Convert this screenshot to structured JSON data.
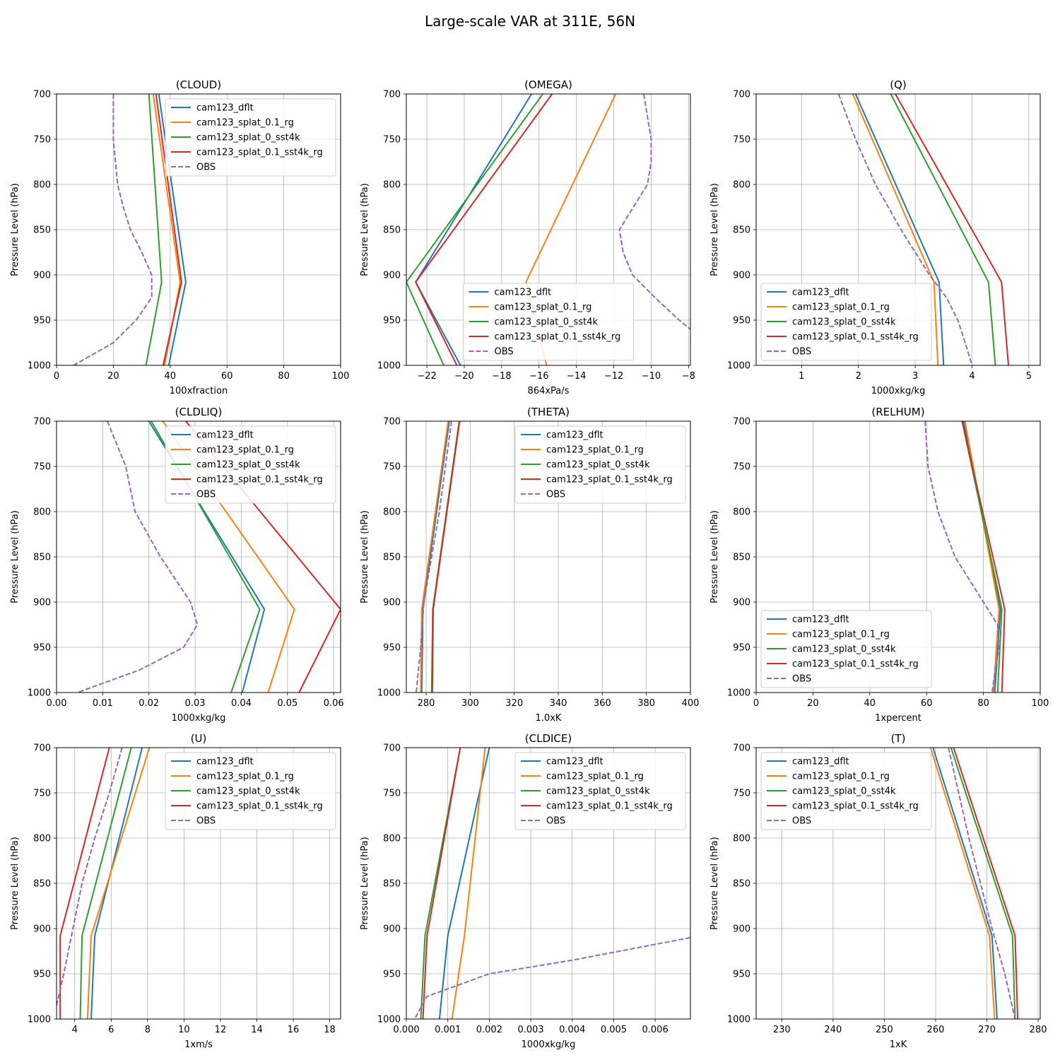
{
  "suptitle": "Large-scale VAR at 311E, 56N",
  "colors": {
    "cam123_dflt": "#1f77b4",
    "cam123_splat_0.1_rg": "#ff7f0e",
    "cam123_splat_0_sst4k": "#2ca02c",
    "cam123_splat_0.1_sst4k_rg": "#d62728",
    "OBS": "#9467bd"
  },
  "chart_data": [
    {
      "type": "line",
      "title": "(CLOUD)",
      "xlabel": "100xfraction",
      "ylabel": "Pressure Level (hPa)",
      "xlim": [
        0,
        100
      ],
      "ylim": [
        1000,
        700
      ],
      "xticks": [
        0,
        20,
        40,
        60,
        80,
        100
      ],
      "xtick_labels": [
        "0",
        "20",
        "40",
        "60",
        "80",
        "100"
      ],
      "yticks": [
        700,
        750,
        800,
        850,
        900,
        950,
        1000
      ],
      "ytick_labels": [
        "700",
        "750",
        "800",
        "850",
        "900",
        "950",
        "1000"
      ],
      "legend": "upper right",
      "series": [
        {
          "name": "cam123_dflt",
          "levels": [
            700,
            908,
            1000
          ],
          "values": [
            36,
            45.5,
            39.5
          ]
        },
        {
          "name": "cam123_splat_0.1_rg",
          "levels": [
            700,
            908,
            1000
          ],
          "values": [
            34,
            43.5,
            38
          ]
        },
        {
          "name": "cam123_splat_0_sst4k",
          "levels": [
            700,
            908,
            1000
          ],
          "values": [
            32.5,
            37,
            31.5
          ]
        },
        {
          "name": "cam123_splat_0.1_sst4k_rg",
          "levels": [
            700,
            908,
            1000
          ],
          "values": [
            35,
            44,
            37.5
          ]
        },
        {
          "name": "OBS",
          "dashed": true,
          "levels": [
            700,
            750,
            800,
            825,
            850,
            875,
            900,
            925,
            950,
            975,
            1000
          ],
          "values": [
            20,
            20,
            21.5,
            23.5,
            26,
            30,
            33.5,
            33.5,
            28,
            20,
            6
          ]
        }
      ]
    },
    {
      "type": "line",
      "title": "(OMEGA)",
      "xlabel": "864xPa/s",
      "ylabel": "Pressure Level (hPa)",
      "xlim": [
        -23.1,
        -7.9
      ],
      "ylim": [
        1000,
        700
      ],
      "xticks": [
        -22,
        -20,
        -18,
        -16,
        -14,
        -12,
        -10,
        -8
      ],
      "xtick_labels": [
        "−22",
        "−20",
        "−18",
        "−16",
        "−14",
        "−12",
        "−10",
        "−8"
      ],
      "yticks": [
        700,
        750,
        800,
        850,
        900,
        950,
        1000
      ],
      "ytick_labels": [
        "700",
        "750",
        "800",
        "850",
        "900",
        "950",
        "1000"
      ],
      "legend": "lower center",
      "series": [
        {
          "name": "cam123_dflt",
          "levels": [
            700,
            908,
            1000
          ],
          "values": [
            -16.4,
            -22.6,
            -20.2
          ]
        },
        {
          "name": "cam123_splat_0.1_rg",
          "levels": [
            700,
            908,
            1000
          ],
          "values": [
            -11.9,
            -16.7,
            -15.6
          ]
        },
        {
          "name": "cam123_splat_0_sst4k",
          "levels": [
            700,
            908,
            1000
          ],
          "values": [
            -15.8,
            -23.1,
            -21.1
          ]
        },
        {
          "name": "cam123_splat_0.1_sst4k_rg",
          "levels": [
            700,
            908,
            1000
          ],
          "values": [
            -15.3,
            -22.6,
            -20.4
          ]
        },
        {
          "name": "OBS",
          "dashed": true,
          "levels": [
            700,
            750,
            775,
            800,
            850,
            875,
            900,
            925,
            950,
            960
          ],
          "values": [
            -10.4,
            -10,
            -10,
            -10.2,
            -11.7,
            -11.5,
            -11,
            -9.8,
            -8.5,
            -7.9
          ]
        }
      ]
    },
    {
      "type": "line",
      "title": "(Q)",
      "xlabel": "1000xkg/kg",
      "ylabel": "Pressure Level (hPa)",
      "xlim": [
        0.2,
        5.2
      ],
      "ylim": [
        1000,
        700
      ],
      "xticks": [
        1,
        2,
        3,
        4,
        5
      ],
      "xtick_labels": [
        "1",
        "2",
        "3",
        "4",
        "5"
      ],
      "yticks": [
        700,
        750,
        800,
        850,
        900,
        950,
        1000
      ],
      "ytick_labels": [
        "700",
        "750",
        "800",
        "850",
        "900",
        "950",
        "1000"
      ],
      "legend": "lower left",
      "series": [
        {
          "name": "cam123_dflt",
          "levels": [
            700,
            908,
            1000
          ],
          "values": [
            1.95,
            3.42,
            3.5
          ]
        },
        {
          "name": "cam123_splat_0.1_rg",
          "levels": [
            700,
            908,
            1000
          ],
          "values": [
            1.9,
            3.33,
            3.4
          ]
        },
        {
          "name": "cam123_splat_0_sst4k",
          "levels": [
            700,
            908,
            1000
          ],
          "values": [
            2.57,
            4.29,
            4.41
          ]
        },
        {
          "name": "cam123_splat_0.1_sst4k_rg",
          "levels": [
            700,
            908,
            1000
          ],
          "values": [
            2.65,
            4.52,
            4.64
          ]
        },
        {
          "name": "OBS",
          "dashed": true,
          "levels": [
            700,
            750,
            800,
            850,
            900,
            925,
            950,
            975,
            1000
          ],
          "values": [
            1.65,
            1.95,
            2.3,
            2.75,
            3.25,
            3.55,
            3.75,
            3.88,
            4
          ]
        }
      ]
    },
    {
      "type": "line",
      "title": "(CLDLIQ)",
      "xlabel": "1000xkg/kg",
      "ylabel": "Pressure Level (hPa)",
      "xlim": [
        0,
        0.0615
      ],
      "ylim": [
        1000,
        700
      ],
      "xticks": [
        0,
        0.01,
        0.02,
        0.03,
        0.04,
        0.05,
        0.06
      ],
      "xtick_labels": [
        "0.00",
        "0.01",
        "0.02",
        "0.03",
        "0.04",
        "0.05",
        "0.06"
      ],
      "yticks": [
        700,
        750,
        800,
        850,
        900,
        950,
        1000
      ],
      "ytick_labels": [
        "700",
        "750",
        "800",
        "850",
        "900",
        "950",
        "1000"
      ],
      "legend": "upper right",
      "series": [
        {
          "name": "cam123_dflt",
          "levels": [
            700,
            908,
            1000
          ],
          "values": [
            0.02,
            0.045,
            0.0402
          ]
        },
        {
          "name": "cam123_splat_0.1_rg",
          "levels": [
            700,
            908,
            1000
          ],
          "values": [
            0.023,
            0.0515,
            0.0458
          ]
        },
        {
          "name": "cam123_splat_0_sst4k",
          "levels": [
            700,
            908,
            1000
          ],
          "values": [
            0.0205,
            0.044,
            0.0378
          ]
        },
        {
          "name": "cam123_splat_0.1_sst4k_rg",
          "levels": [
            700,
            908,
            1000
          ],
          "values": [
            0.028,
            0.0615,
            0.0525
          ]
        },
        {
          "name": "OBS",
          "dashed": true,
          "levels": [
            700,
            750,
            800,
            850,
            900,
            925,
            950,
            975,
            1000
          ],
          "values": [
            0.011,
            0.015,
            0.017,
            0.0225,
            0.029,
            0.0305,
            0.0275,
            0.018,
            0.0045
          ]
        }
      ]
    },
    {
      "type": "line",
      "title": "(THETA)",
      "xlabel": "1.0xK",
      "ylabel": "Pressure Level (hPa)",
      "xlim": [
        271,
        400
      ],
      "ylim": [
        1000,
        700
      ],
      "xticks": [
        280,
        300,
        320,
        340,
        360,
        380,
        400
      ],
      "xtick_labels": [
        "280",
        "300",
        "320",
        "340",
        "360",
        "380",
        "400"
      ],
      "yticks": [
        700,
        750,
        800,
        850,
        900,
        950,
        1000
      ],
      "ytick_labels": [
        "700",
        "750",
        "800",
        "850",
        "900",
        "950",
        "1000"
      ],
      "legend": "upper right",
      "series": [
        {
          "name": "cam123_dflt",
          "levels": [
            700,
            908,
            1000
          ],
          "values": [
            290.5,
            278.5,
            278
          ]
        },
        {
          "name": "cam123_splat_0.1_rg",
          "levels": [
            700,
            908,
            1000
          ],
          "values": [
            290,
            278,
            277.5
          ]
        },
        {
          "name": "cam123_splat_0_sst4k",
          "levels": [
            700,
            908,
            1000
          ],
          "values": [
            295,
            283,
            282.5
          ]
        },
        {
          "name": "cam123_splat_0.1_sst4k_rg",
          "levels": [
            700,
            908,
            1000
          ],
          "values": [
            295.2,
            283.2,
            282.8
          ]
        },
        {
          "name": "OBS",
          "dashed": true,
          "levels": [
            700,
            800,
            900,
            950,
            1000
          ],
          "values": [
            291.5,
            286,
            279,
            277.5,
            275.5
          ]
        }
      ]
    },
    {
      "type": "line",
      "title": "(RELHUM)",
      "xlabel": "1xpercent",
      "ylabel": "Pressure Level (hPa)",
      "xlim": [
        0,
        100
      ],
      "ylim": [
        1000,
        700
      ],
      "xticks": [
        0,
        20,
        40,
        60,
        80,
        100
      ],
      "xtick_labels": [
        "0",
        "20",
        "40",
        "60",
        "80",
        "100"
      ],
      "yticks": [
        700,
        750,
        800,
        850,
        900,
        950,
        1000
      ],
      "ytick_labels": [
        "700",
        "750",
        "800",
        "850",
        "900",
        "950",
        "1000"
      ],
      "legend": "lower left",
      "series": [
        {
          "name": "cam123_dflt",
          "levels": [
            700,
            908,
            1000
          ],
          "values": [
            73,
            86,
            84
          ]
        },
        {
          "name": "cam123_splat_0.1_rg",
          "levels": [
            700,
            908,
            1000
          ],
          "values": [
            73.5,
            85.5,
            83.5
          ]
        },
        {
          "name": "cam123_splat_0_sst4k",
          "levels": [
            700,
            908,
            1000
          ],
          "values": [
            72.5,
            86.5,
            85
          ]
        },
        {
          "name": "cam123_splat_0.1_sst4k_rg",
          "levels": [
            700,
            908,
            1000
          ],
          "values": [
            72.5,
            87.5,
            86.5
          ]
        },
        {
          "name": "OBS",
          "dashed": true,
          "levels": [
            700,
            750,
            800,
            850,
            900,
            925,
            950,
            1000
          ],
          "values": [
            59.5,
            60.5,
            64,
            70,
            80,
            85,
            85.5,
            83
          ]
        }
      ]
    },
    {
      "type": "line",
      "title": "(U)",
      "xlabel": "1xm/s",
      "ylabel": "Pressure Level (hPa)",
      "xlim": [
        3,
        18.6
      ],
      "ylim": [
        1000,
        700
      ],
      "xticks": [
        4,
        6,
        8,
        10,
        12,
        14,
        16,
        18
      ],
      "xtick_labels": [
        "4",
        "6",
        "8",
        "10",
        "12",
        "14",
        "16",
        "18"
      ],
      "yticks": [
        700,
        750,
        800,
        850,
        900,
        950,
        1000
      ],
      "ytick_labels": [
        "700",
        "750",
        "800",
        "850",
        "900",
        "950",
        "1000"
      ],
      "legend": "upper right",
      "series": [
        {
          "name": "cam123_dflt",
          "levels": [
            700,
            908,
            1000
          ],
          "values": [
            7.7,
            5.1,
            4.9
          ]
        },
        {
          "name": "cam123_splat_0.1_rg",
          "levels": [
            700,
            908,
            1000
          ],
          "values": [
            8.1,
            4.9,
            4.7
          ]
        },
        {
          "name": "cam123_splat_0_sst4k",
          "levels": [
            700,
            908,
            1000
          ],
          "values": [
            7.1,
            4.4,
            4.3
          ]
        },
        {
          "name": "cam123_splat_0.1_sst4k_rg",
          "levels": [
            700,
            908,
            1000
          ],
          "values": [
            5.9,
            3.2,
            3.2
          ]
        },
        {
          "name": "OBS",
          "dashed": true,
          "levels": [
            700,
            750,
            800,
            850,
            900,
            950,
            985
          ],
          "values": [
            6.6,
            5.9,
            5.1,
            4.4,
            3.9,
            3.4,
            3
          ]
        }
      ]
    },
    {
      "type": "line",
      "title": "(CLDICE)",
      "xlabel": "1000xkg/kg",
      "ylabel": "Pressure Level (hPa)",
      "xlim": [
        0,
        0.00685
      ],
      "ylim": [
        1000,
        700
      ],
      "xticks": [
        0,
        0.001,
        0.002,
        0.003,
        0.004,
        0.005,
        0.006
      ],
      "xtick_labels": [
        "0.000",
        "0.001",
        "0.002",
        "0.003",
        "0.004",
        "0.005",
        "0.006"
      ],
      "yticks": [
        700,
        750,
        800,
        850,
        900,
        950,
        1000
      ],
      "ytick_labels": [
        "700",
        "750",
        "800",
        "850",
        "900",
        "950",
        "1000"
      ],
      "legend": "upper right",
      "series": [
        {
          "name": "cam123_dflt",
          "levels": [
            700,
            908,
            1000
          ],
          "values": [
            0.002,
            0.001,
            0.0008
          ]
        },
        {
          "name": "cam123_splat_0.1_rg",
          "levels": [
            700,
            908,
            1000
          ],
          "values": [
            0.0019,
            0.0014,
            0.0011
          ]
        },
        {
          "name": "cam123_splat_0_sst4k",
          "levels": [
            700,
            908,
            1000
          ],
          "values": [
            0.0013,
            0.00045,
            0.00035
          ]
        },
        {
          "name": "cam123_splat_0.1_sst4k_rg",
          "levels": [
            700,
            908,
            1000
          ],
          "values": [
            0.0013,
            0.0005,
            0.0004
          ]
        },
        {
          "name": "OBS",
          "dashed": true,
          "levels": [
            910,
            935,
            950,
            975,
            1000
          ],
          "values": [
            0.00685,
            0.004,
            0.002,
            0.0005,
            0.0002
          ]
        }
      ]
    },
    {
      "type": "line",
      "title": "(T)",
      "xlabel": "1xK",
      "ylabel": "Pressure Level (hPa)",
      "xlim": [
        225,
        280.4
      ],
      "ylim": [
        1000,
        700
      ],
      "xticks": [
        230,
        240,
        250,
        260,
        270,
        280
      ],
      "xtick_labels": [
        "230",
        "240",
        "250",
        "260",
        "270",
        "280"
      ],
      "yticks": [
        700,
        750,
        800,
        850,
        900,
        950,
        1000
      ],
      "ytick_labels": [
        "700",
        "750",
        "800",
        "850",
        "900",
        "950",
        "1000"
      ],
      "legend": "upper left",
      "series": [
        {
          "name": "cam123_dflt",
          "levels": [
            700,
            908,
            1000
          ],
          "values": [
            259.5,
            271,
            272
          ]
        },
        {
          "name": "cam123_splat_0.1_rg",
          "levels": [
            700,
            908,
            1000
          ],
          "values": [
            259,
            270.5,
            271.5
          ]
        },
        {
          "name": "cam123_splat_0_sst4k",
          "levels": [
            700,
            908,
            1000
          ],
          "values": [
            263,
            275,
            275.5
          ]
        },
        {
          "name": "cam123_splat_0.1_sst4k_rg",
          "levels": [
            700,
            908,
            1000
          ],
          "values": [
            263.5,
            275.5,
            276
          ]
        },
        {
          "name": "OBS",
          "dashed": true,
          "levels": [
            700,
            800,
            900,
            950,
            1000
          ],
          "values": [
            262.5,
            266.5,
            271,
            273.5,
            275.5
          ]
        }
      ]
    }
  ]
}
